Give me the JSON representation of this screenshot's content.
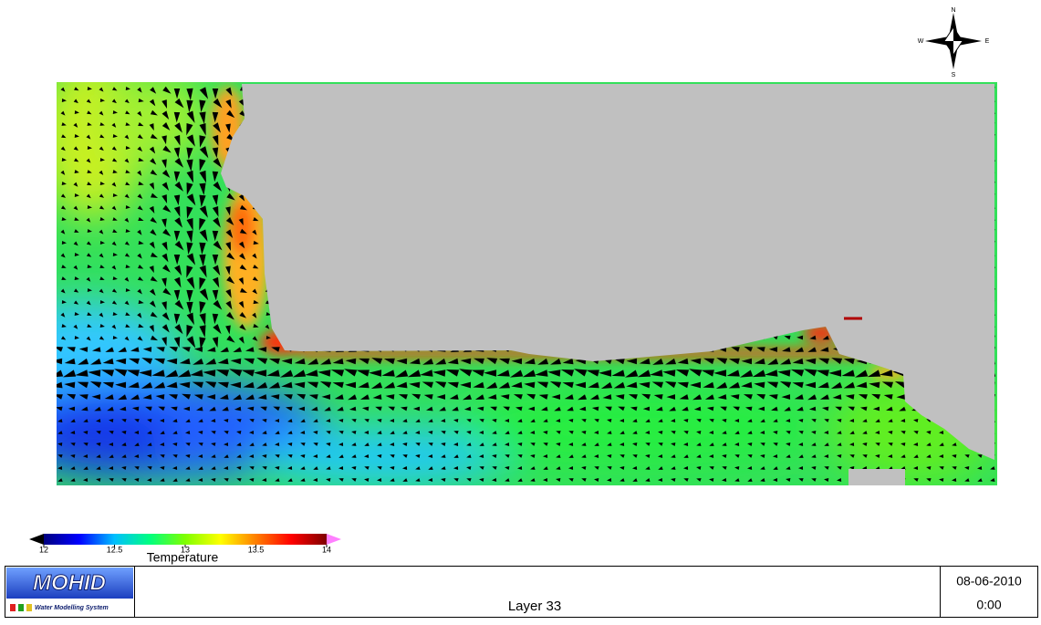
{
  "compass": {
    "north": "N",
    "south": "S",
    "east": "E",
    "west": "W"
  },
  "colorbar": {
    "label": "Temperature",
    "min": 12,
    "max": 14,
    "ticks": [
      12,
      12.5,
      13,
      13.5,
      14
    ],
    "colors": [
      "#00007f",
      "#0000ff",
      "#00bfff",
      "#00ff7f",
      "#7fff00",
      "#ffff00",
      "#ff7f00",
      "#ff0000",
      "#7f0000"
    ],
    "under_color": "#000000",
    "over_color": "#ff80ff"
  },
  "footer": {
    "logo": "MOHID",
    "logo_subtitle": "Water Modelling System",
    "layer": "Layer 33",
    "date": "08-06-2010",
    "time": "0:00"
  }
}
